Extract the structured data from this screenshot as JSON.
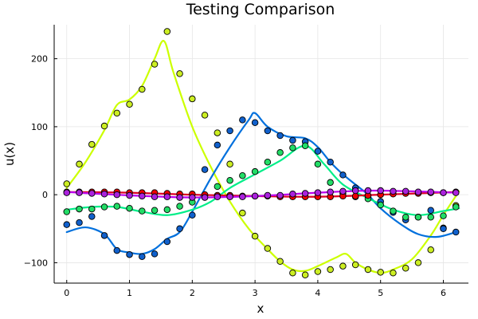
{
  "chart_data": {
    "type": "scatter",
    "title": "Testing Comparison",
    "xlabel": "x",
    "ylabel": "u(x)",
    "xlim": [
      -0.2,
      6.4
    ],
    "ylim": [
      -130,
      250
    ],
    "xticks": [
      0,
      1,
      2,
      3,
      4,
      5,
      6
    ],
    "yticks": [
      -100,
      0,
      100,
      200
    ],
    "xtick_labels": [
      "0",
      "1",
      "2",
      "3",
      "4",
      "5",
      "6"
    ],
    "ytick_labels": [
      "−100",
      "0",
      "100",
      "200"
    ],
    "grid": true,
    "legend": "none",
    "x": [
      0.0,
      0.2,
      0.4,
      0.6,
      0.8,
      1.0,
      1.2,
      1.4,
      1.6,
      1.8,
      2.0,
      2.2,
      2.4,
      2.6,
      2.8,
      3.0,
      3.2,
      3.4,
      3.6,
      3.8,
      4.0,
      4.2,
      4.4,
      4.6,
      4.8,
      5.0,
      5.2,
      5.4,
      5.6,
      5.8,
      6.0,
      6.2
    ],
    "series": [
      {
        "color": "#ccff00",
        "marker_color": "#ccee22",
        "points": [
          16,
          45,
          74,
          101,
          120,
          133,
          155,
          192,
          240,
          178,
          141,
          117,
          91,
          45,
          -27,
          -61,
          -79,
          -98,
          -115,
          -118,
          -113,
          -110,
          -105,
          -103,
          -110,
          -114,
          -115,
          -108,
          -100,
          -81,
          -49,
          -16
        ],
        "line": [
          [
            0,
            10
          ],
          [
            0.3,
            48
          ],
          [
            0.6,
            95
          ],
          [
            0.8,
            132
          ],
          [
            1.0,
            140
          ],
          [
            1.2,
            160
          ],
          [
            1.4,
            200
          ],
          [
            1.55,
            226
          ],
          [
            1.7,
            180
          ],
          [
            2.0,
            100
          ],
          [
            2.3,
            40
          ],
          [
            2.6,
            -10
          ],
          [
            2.9,
            -50
          ],
          [
            3.2,
            -80
          ],
          [
            3.4,
            -98
          ],
          [
            3.6,
            -110
          ],
          [
            3.8,
            -112
          ],
          [
            4.0,
            -105
          ],
          [
            4.3,
            -92
          ],
          [
            4.45,
            -87
          ],
          [
            4.6,
            -100
          ],
          [
            4.8,
            -110
          ],
          [
            5.0,
            -115
          ],
          [
            5.2,
            -110
          ],
          [
            5.5,
            -95
          ],
          [
            5.8,
            -60
          ],
          [
            6.0,
            -30
          ],
          [
            6.25,
            5
          ]
        ]
      },
      {
        "color": "#0070dd",
        "marker_color": "#1060cc",
        "points": [
          -44,
          -41,
          -32,
          -60,
          -82,
          -88,
          -91,
          -87,
          -69,
          -50,
          -30,
          37,
          73,
          94,
          110,
          106,
          94,
          87,
          80,
          78,
          64,
          48,
          29,
          10,
          -2,
          -10,
          -26,
          -37,
          -33,
          -23,
          -50,
          -55
        ],
        "line": [
          [
            0,
            -55
          ],
          [
            0.3,
            -48
          ],
          [
            0.6,
            -58
          ],
          [
            0.8,
            -80
          ],
          [
            1.0,
            -85
          ],
          [
            1.2,
            -87
          ],
          [
            1.4,
            -80
          ],
          [
            1.6,
            -65
          ],
          [
            1.8,
            -55
          ],
          [
            2.0,
            -25
          ],
          [
            2.3,
            25
          ],
          [
            2.6,
            70
          ],
          [
            2.9,
            110
          ],
          [
            3.0,
            120
          ],
          [
            3.2,
            100
          ],
          [
            3.5,
            86
          ],
          [
            3.8,
            83
          ],
          [
            4.0,
            70
          ],
          [
            4.2,
            48
          ],
          [
            4.4,
            30
          ],
          [
            4.6,
            15
          ],
          [
            4.8,
            0
          ],
          [
            5.0,
            -20
          ],
          [
            5.3,
            -42
          ],
          [
            5.6,
            -58
          ],
          [
            5.9,
            -62
          ],
          [
            6.2,
            -55
          ]
        ]
      },
      {
        "color": "#00ee88",
        "marker_color": "#22dd66",
        "points": [
          -25,
          -21,
          -21,
          -18,
          -17,
          -20,
          -24,
          -23,
          -22,
          -17,
          -11,
          -1,
          12,
          21,
          28,
          34,
          48,
          62,
          69,
          72,
          45,
          18,
          2,
          -3,
          -6,
          -15,
          -24,
          -33,
          -33,
          -33,
          -31,
          -18
        ],
        "line": [
          [
            0,
            -22
          ],
          [
            0.4,
            -18
          ],
          [
            0.8,
            -18
          ],
          [
            1.2,
            -25
          ],
          [
            1.6,
            -30
          ],
          [
            2.0,
            -22
          ],
          [
            2.3,
            -10
          ],
          [
            2.6,
            10
          ],
          [
            3.0,
            30
          ],
          [
            3.4,
            50
          ],
          [
            3.8,
            72
          ],
          [
            4.1,
            45
          ],
          [
            4.4,
            15
          ],
          [
            4.8,
            -5
          ],
          [
            5.2,
            -22
          ],
          [
            5.6,
            -30
          ],
          [
            6.0,
            -24
          ],
          [
            6.25,
            -20
          ]
        ]
      },
      {
        "color": "#dd0022",
        "marker_color": "#ee0000",
        "points": [
          4,
          4,
          4,
          4,
          4,
          3,
          3,
          3,
          2,
          1,
          1,
          0,
          -1,
          -1,
          -2,
          -2,
          -2,
          -3,
          -3,
          -3,
          -3,
          -3,
          -2,
          -2,
          -1,
          0,
          1,
          2,
          2,
          3,
          3,
          4
        ],
        "line": [
          [
            0,
            4
          ],
          [
            1.0,
            3
          ],
          [
            2.0,
            0
          ],
          [
            3.0,
            -2
          ],
          [
            4.0,
            -3
          ],
          [
            5.0,
            0
          ],
          [
            6.2,
            4
          ]
        ]
      },
      {
        "color": "#bb00ee",
        "marker_color": "#aa22dd",
        "points": [
          3,
          3,
          2,
          1,
          0,
          -1,
          -2,
          -3,
          -3,
          -4,
          -4,
          -4,
          -3,
          -3,
          -3,
          -2,
          -1,
          -1,
          1,
          2,
          3,
          4,
          5,
          6,
          6,
          6,
          5,
          5,
          4,
          4,
          3,
          3
        ],
        "line": [
          [
            0,
            4
          ],
          [
            1.0,
            -1
          ],
          [
            2.0,
            -4
          ],
          [
            3.0,
            -2
          ],
          [
            4.0,
            3
          ],
          [
            4.8,
            6
          ],
          [
            5.5,
            5
          ],
          [
            6.2,
            3
          ]
        ]
      }
    ]
  }
}
